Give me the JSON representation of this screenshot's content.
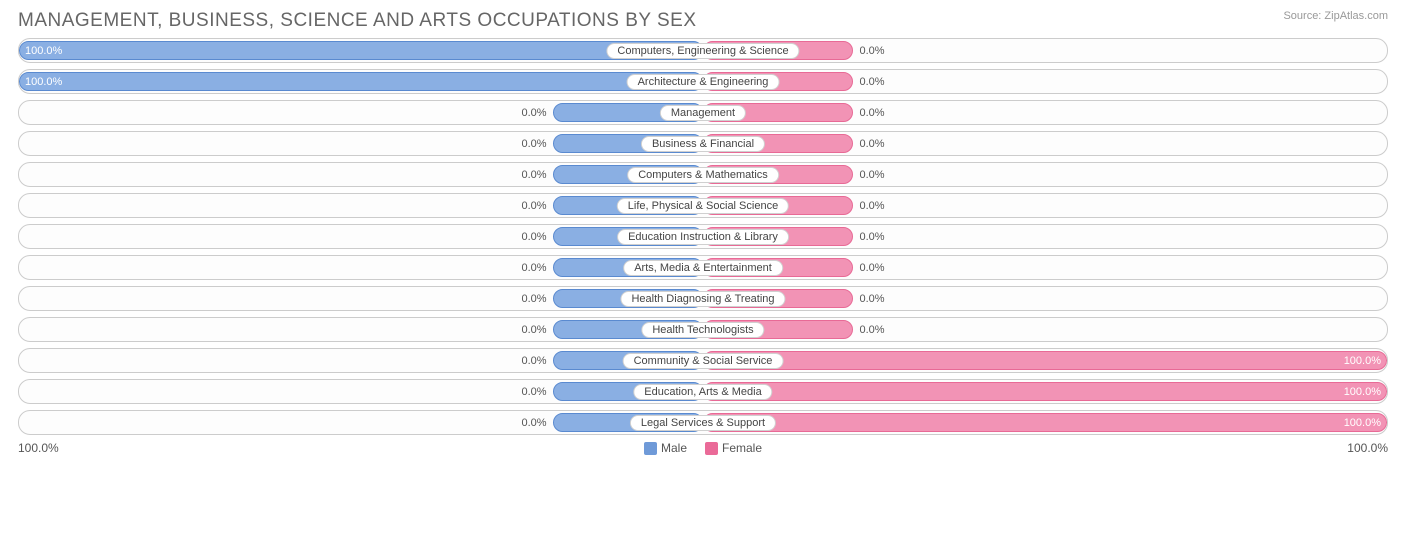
{
  "title": "MANAGEMENT, BUSINESS, SCIENCE AND ARTS OCCUPATIONS BY SEX",
  "source_label": "Source: ZipAtlas.com",
  "chart": {
    "type": "diverging-bar",
    "male_color": "#8aafe3",
    "male_border": "#5a8ad0",
    "female_color": "#f293b5",
    "female_border": "#e86a96",
    "row_border": "#cccccc",
    "background": "#ffffff",
    "label_bg": "#ffffff",
    "text_color": "#555555",
    "min_bar_pct": 22,
    "categories": [
      {
        "label": "Computers, Engineering & Science",
        "male": 100.0,
        "female": 0.0
      },
      {
        "label": "Architecture & Engineering",
        "male": 100.0,
        "female": 0.0
      },
      {
        "label": "Management",
        "male": 0.0,
        "female": 0.0
      },
      {
        "label": "Business & Financial",
        "male": 0.0,
        "female": 0.0
      },
      {
        "label": "Computers & Mathematics",
        "male": 0.0,
        "female": 0.0
      },
      {
        "label": "Life, Physical & Social Science",
        "male": 0.0,
        "female": 0.0
      },
      {
        "label": "Education Instruction & Library",
        "male": 0.0,
        "female": 0.0
      },
      {
        "label": "Arts, Media & Entertainment",
        "male": 0.0,
        "female": 0.0
      },
      {
        "label": "Health Diagnosing & Treating",
        "male": 0.0,
        "female": 0.0
      },
      {
        "label": "Health Technologists",
        "male": 0.0,
        "female": 0.0
      },
      {
        "label": "Community & Social Service",
        "male": 0.0,
        "female": 100.0
      },
      {
        "label": "Education, Arts & Media",
        "male": 0.0,
        "female": 100.0
      },
      {
        "label": "Legal Services & Support",
        "male": 0.0,
        "female": 100.0
      }
    ]
  },
  "axis": {
    "left_label": "100.0%",
    "right_label": "100.0%"
  },
  "legend": {
    "male": "Male",
    "female": "Female"
  }
}
